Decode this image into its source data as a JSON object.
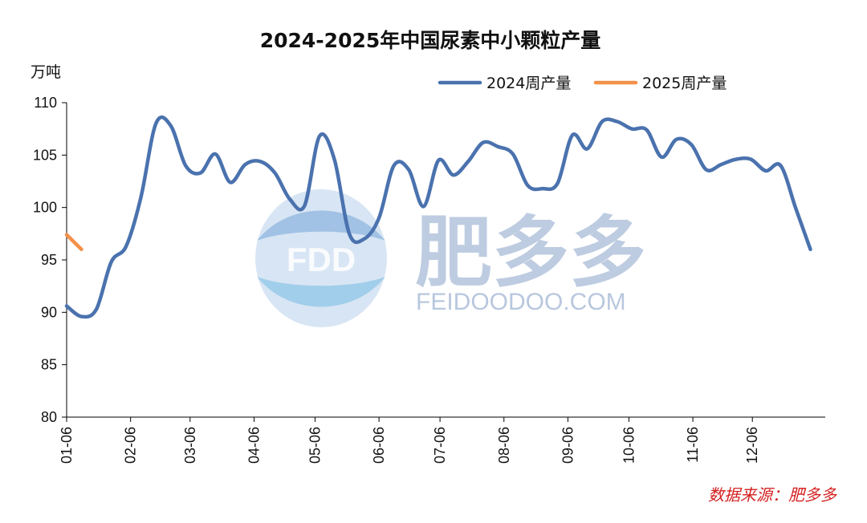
{
  "chart_data": {
    "type": "line",
    "title": "2024-2025年中国尿素中小颗粒产量",
    "ylabel": "万吨",
    "ylim": [
      80,
      110
    ],
    "yticks": [
      80,
      85,
      90,
      95,
      100,
      105,
      110
    ],
    "xlim": [
      0,
      51
    ],
    "xticks": [
      {
        "label": "01-06",
        "x": 0
      },
      {
        "label": "02-06",
        "x": 4.3
      },
      {
        "label": "03-06",
        "x": 8.3
      },
      {
        "label": "04-06",
        "x": 12.6
      },
      {
        "label": "05-06",
        "x": 16.7
      },
      {
        "label": "06-06",
        "x": 21.0
      },
      {
        "label": "07-06",
        "x": 25.1
      },
      {
        "label": "08-06",
        "x": 29.4
      },
      {
        "label": "09-06",
        "x": 33.7
      },
      {
        "label": "10-06",
        "x": 37.8
      },
      {
        "label": "11-06",
        "x": 42.1
      },
      {
        "label": "12-06",
        "x": 46.1
      }
    ],
    "legend_position": "top-right",
    "series": [
      {
        "name": "2024周产量",
        "color": "#4a72ae",
        "values": [
          90.6,
          89.6,
          90.3,
          94.8,
          96.3,
          101.0,
          108.0,
          107.8,
          104.0,
          103.3,
          105.1,
          102.4,
          104.1,
          104.4,
          103.3,
          100.8,
          100.2,
          106.8,
          104.6,
          97.5,
          97.0,
          99.0,
          104.0,
          103.6,
          100.1,
          104.5,
          103.1,
          104.4,
          106.2,
          105.8,
          105.1,
          102.1,
          101.8,
          102.3,
          106.9,
          105.6,
          108.2,
          108.2,
          107.5,
          107.4,
          104.8,
          106.5,
          106.0,
          103.6,
          104.1,
          104.6,
          104.6,
          103.5,
          104.0,
          100.0,
          96.0
        ]
      },
      {
        "name": "2025周产量",
        "color": "#f3914a",
        "values": [
          97.4,
          96.0
        ]
      }
    ]
  },
  "source_text": "数据来源：肥多多",
  "watermark": {
    "logo_text": "FDD",
    "brand_text": "肥多多",
    "url_text": "FEIDOODOO.COM"
  }
}
